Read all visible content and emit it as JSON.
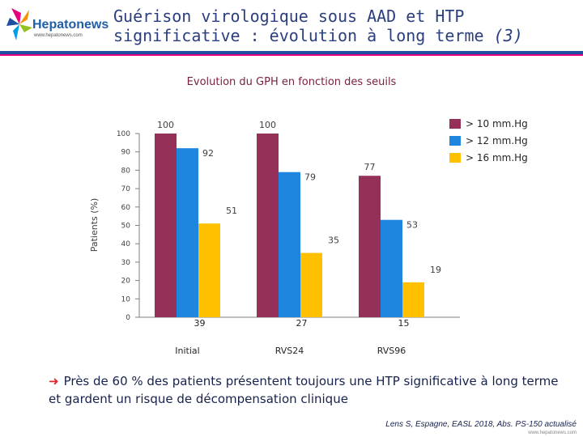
{
  "header": {
    "logo_text": "Hepatonews",
    "logo_sub": "www.hepatonews.com",
    "title_line1": "Guérison virologique sous AAD et HTP",
    "title_line2": "significative : évolution à long terme",
    "title_suffix": "(3)"
  },
  "colors": {
    "series1": "#953159",
    "series2": "#1f86e0",
    "series3": "#ffc000",
    "accent": "#1e4fa0"
  },
  "chart_data": {
    "type": "bar",
    "title": "Evolution du GPH en fonction des seuils",
    "ylabel": "Patients (%)",
    "xlabel": "",
    "ylim": [
      0,
      100
    ],
    "yticks": [
      0,
      10,
      20,
      30,
      40,
      50,
      60,
      70,
      80,
      90,
      100
    ],
    "grid": false,
    "legend": "top-right",
    "categories": [
      "Initial",
      "RVS24",
      "RVS96"
    ],
    "n_values": [
      "39",
      "27",
      "15"
    ],
    "series": [
      {
        "name": "> 10 mm.Hg",
        "values": [
          100,
          100,
          77
        ]
      },
      {
        "name": "> 12 mm.Hg",
        "values": [
          92,
          79,
          53
        ]
      },
      {
        "name": "> 16 mm.Hg",
        "values": [
          51,
          35,
          19
        ]
      }
    ]
  },
  "caption": {
    "text": "Près de 60 % des patients présentent toujours une HTP significative à long terme et gardent un risque de décompensation clinique"
  },
  "reference": "Lens S, Espagne, EASL 2018, Abs. PS-150 actualisé",
  "footer_url": "www.hepatonews.com"
}
